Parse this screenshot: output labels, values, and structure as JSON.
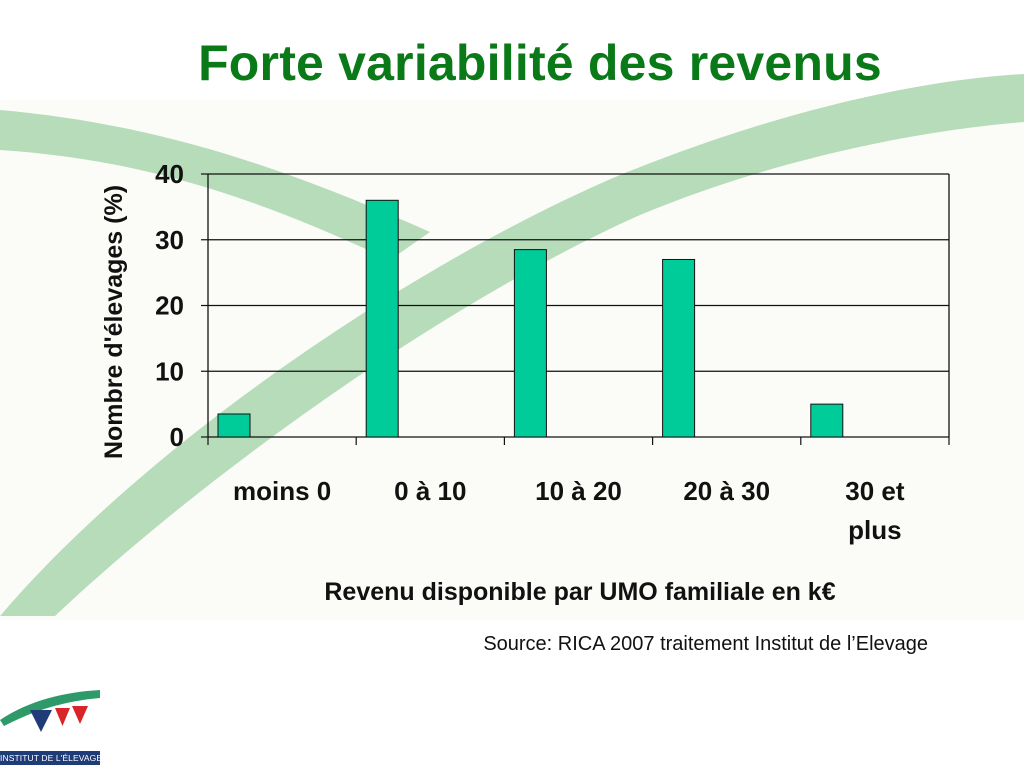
{
  "slide": {
    "title": "Forte variabilité des revenus",
    "source": "Source: RICA 2007 traitement Institut de l’Elevage"
  },
  "logo": {
    "text": "INSTITUT DE L'ÉLEVAGE"
  },
  "colors": {
    "title": "#0a7a18",
    "bar": "#00cc99",
    "swoosh": "#b7dcb9",
    "logo_blue": "#1f3c78",
    "logo_red": "#d9252a"
  },
  "chart_data": {
    "type": "bar",
    "categories": [
      "moins 0",
      "0 à 10",
      "10 à 20",
      "20 à 30",
      "30 et plus"
    ],
    "category_lines": [
      [
        "moins 0"
      ],
      [
        "0 à 10"
      ],
      [
        "10 à 20"
      ],
      [
        "20 à 30"
      ],
      [
        "30 et",
        "plus"
      ]
    ],
    "values": [
      3.5,
      36,
      28.5,
      27,
      5
    ],
    "ylim": [
      0,
      40
    ],
    "yticks": [
      "0",
      "10",
      "20",
      "30",
      "40"
    ],
    "xlabel": "Revenu disponible par UMO familiale en k€",
    "ylabel": "Nombre d'élevages (%)",
    "grid": true,
    "legend": "none"
  }
}
